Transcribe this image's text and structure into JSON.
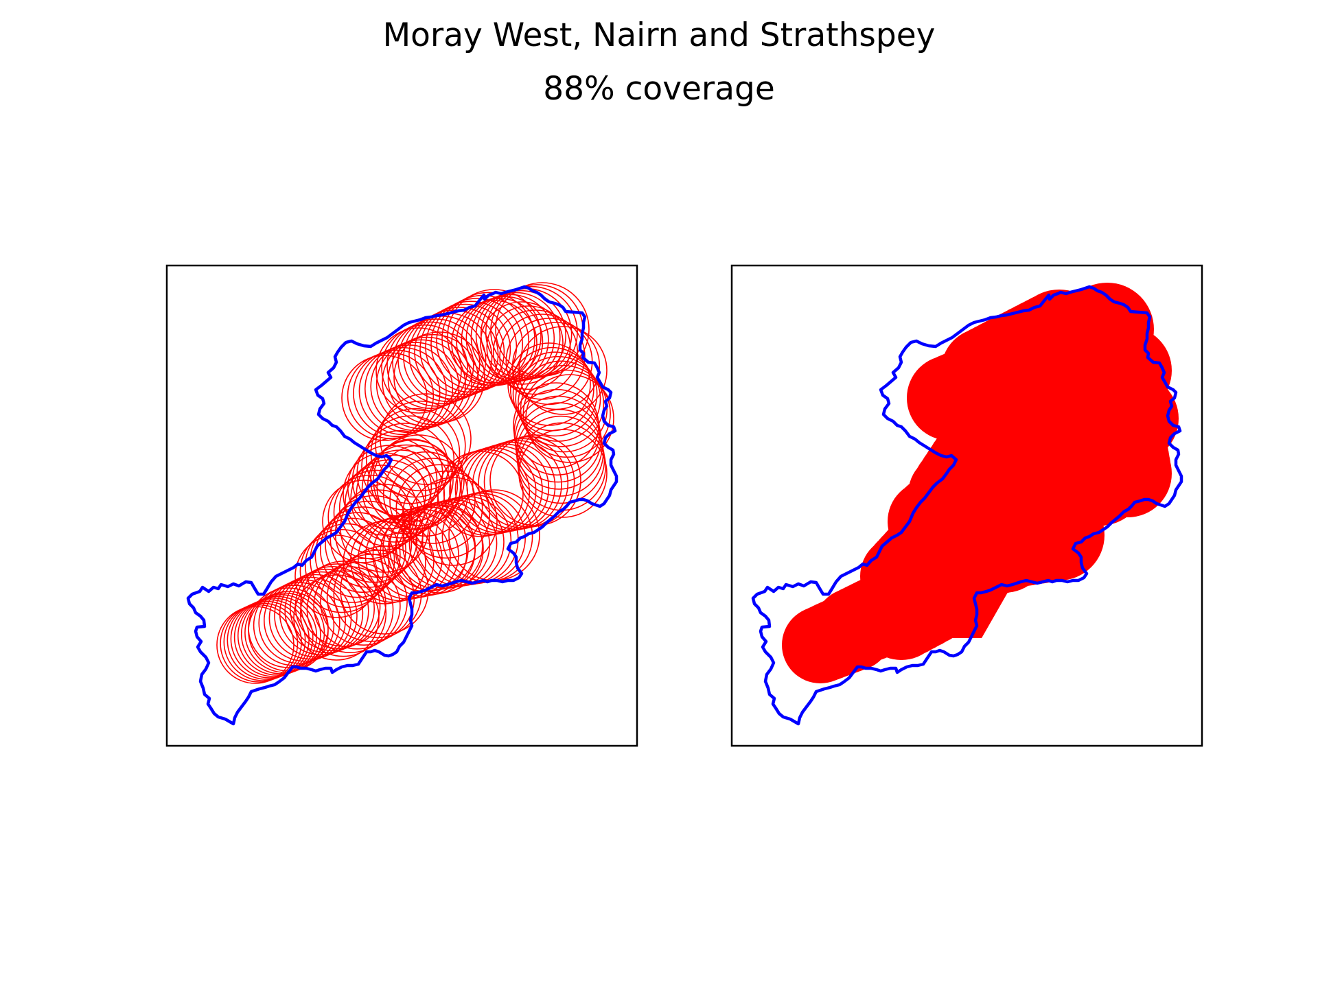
{
  "figure": {
    "title": "Moray West, Nairn and Strathspey",
    "subtitle": "88% coverage"
  },
  "colors": {
    "boundary": "#0000ff",
    "coverage": "#ff0000",
    "axes_frame": "#000000",
    "background": "#ffffff"
  },
  "panels": [
    {
      "id": "left",
      "style": "circle-outlines"
    },
    {
      "id": "right",
      "style": "filled-union"
    }
  ]
}
